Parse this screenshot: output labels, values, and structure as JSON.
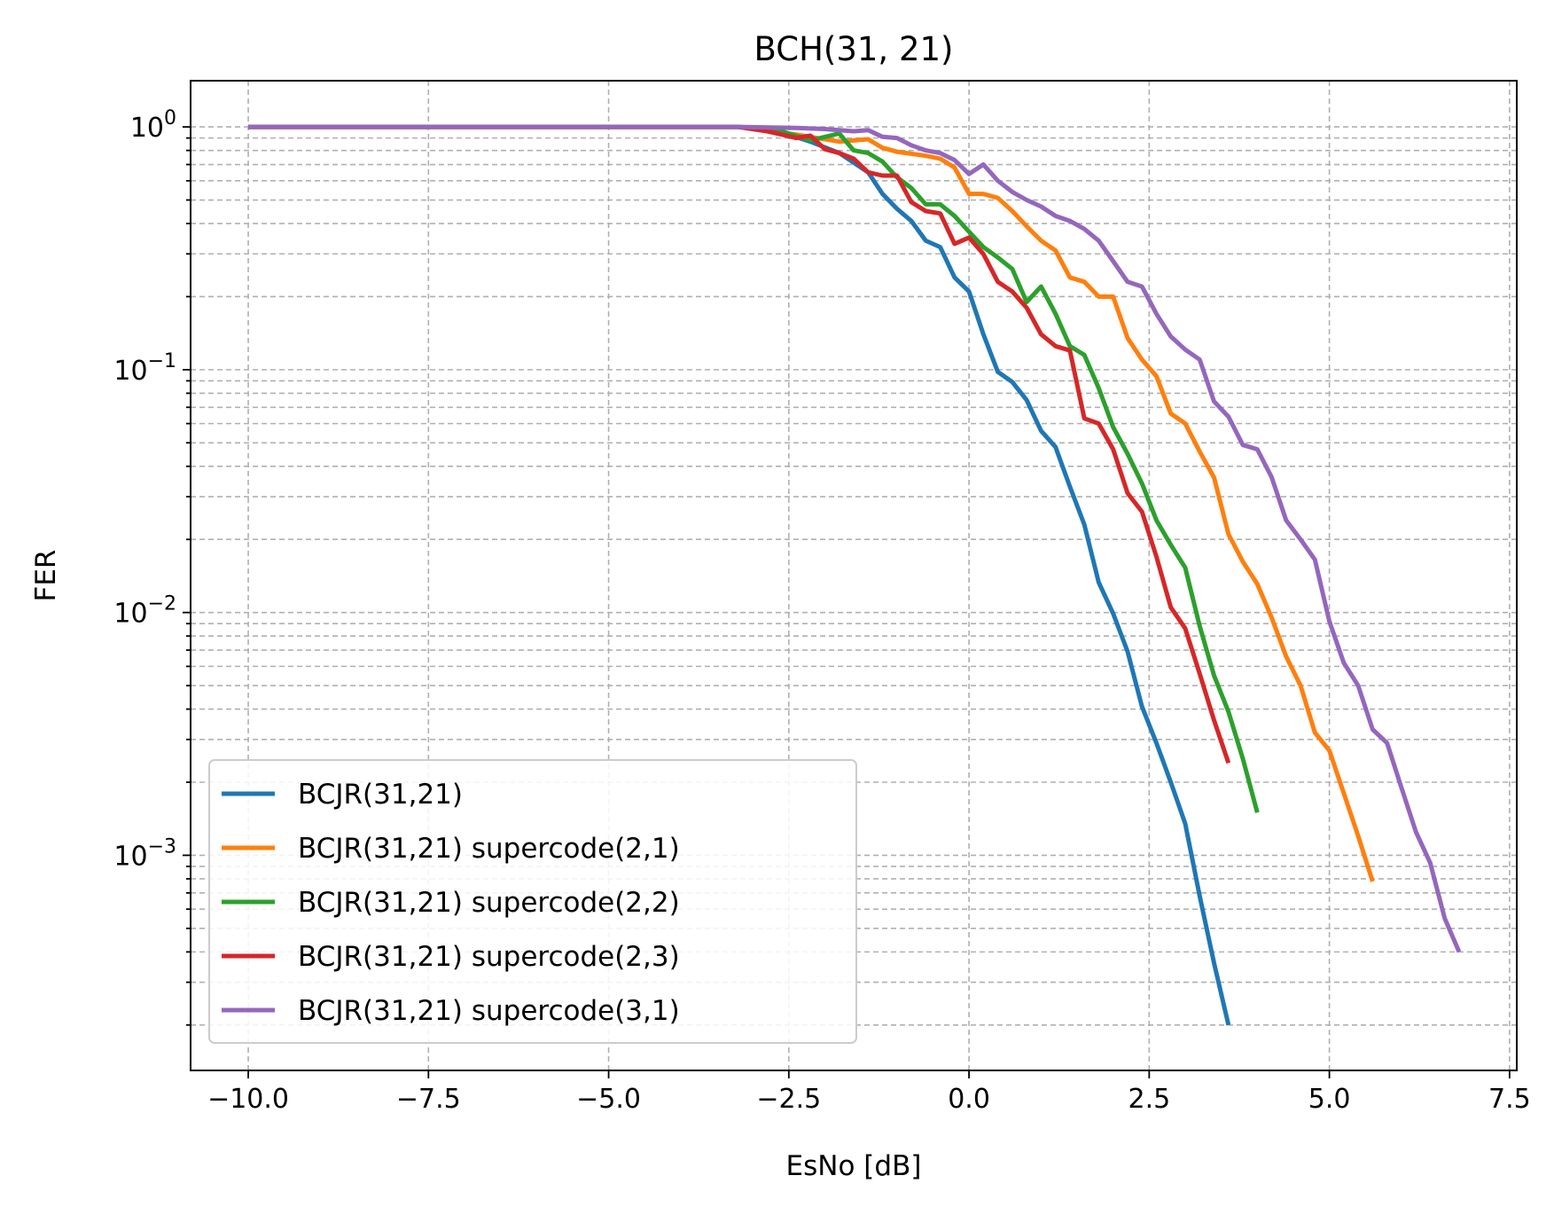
{
  "chart_data": {
    "type": "line",
    "title": "BCH(31, 21)",
    "xlabel": "EsNo [dB]",
    "ylabel": "FER",
    "xlim": [
      -10.8,
      7.6
    ],
    "ylim": [
      0.00013,
      1.55
    ],
    "yscale": "log",
    "grid": "both (major and minor), dashed",
    "legend_position": "lower-left",
    "x_ticks": [
      -10.0,
      -7.5,
      -5.0,
      -2.5,
      0.0,
      2.5,
      5.0,
      7.5
    ],
    "x_tick_labels": [
      "−10.0",
      "−7.5",
      "−5.0",
      "−2.5",
      "0.0",
      "2.5",
      "5.0",
      "7.5"
    ],
    "y_ticks": [
      0.001,
      0.01,
      0.1,
      1
    ],
    "y_tick_labels": [
      {
        "base": "10",
        "exp": "−3"
      },
      {
        "base": "10",
        "exp": "−2"
      },
      {
        "base": "10",
        "exp": "−1"
      },
      {
        "base": "10",
        "exp": "0"
      }
    ],
    "series": [
      {
        "name": "BCJR(31,21)",
        "color": "#1f77b4",
        "x": [
          -10,
          -3.2,
          -2.6,
          -2.2,
          -1.8,
          -1.4,
          -1.2,
          -1.0,
          -0.8,
          -0.6,
          -0.4,
          -0.2,
          0.0,
          0.2,
          0.4,
          0.6,
          0.8,
          1.0,
          1.2,
          1.4,
          1.6,
          1.8,
          2.0,
          2.2,
          2.4,
          2.6,
          2.8,
          3.0,
          3.2,
          3.4,
          3.6
        ],
        "y": [
          1.0,
          1.0,
          0.95,
          0.87,
          0.78,
          0.65,
          0.53,
          0.46,
          0.41,
          0.34,
          0.32,
          0.24,
          0.21,
          0.14,
          0.098,
          0.089,
          0.075,
          0.056,
          0.048,
          0.033,
          0.023,
          0.0133,
          0.0099,
          0.0069,
          0.0041,
          0.0029,
          0.002,
          0.00135,
          0.00068,
          0.00036,
          0.0002
        ]
      },
      {
        "name": "BCJR(31,21) supercode(2,1)",
        "color": "#ff7f0e",
        "x": [
          -10,
          -3.2,
          -2.4,
          -1.8,
          -1.4,
          -1.2,
          -1.0,
          -0.6,
          -0.4,
          -0.2,
          0.0,
          0.2,
          0.4,
          0.6,
          0.8,
          1.0,
          1.2,
          1.4,
          1.6,
          1.8,
          2.0,
          2.2,
          2.4,
          2.6,
          2.8,
          3.0,
          3.2,
          3.4,
          3.6,
          3.8,
          4.0,
          4.2,
          4.4,
          4.6,
          4.8,
          5.0,
          5.2,
          5.4,
          5.6
        ],
        "y": [
          1.0,
          1.0,
          0.93,
          0.87,
          0.89,
          0.82,
          0.79,
          0.76,
          0.74,
          0.68,
          0.53,
          0.53,
          0.51,
          0.45,
          0.39,
          0.34,
          0.31,
          0.24,
          0.23,
          0.2,
          0.2,
          0.135,
          0.11,
          0.094,
          0.066,
          0.06,
          0.046,
          0.036,
          0.021,
          0.0162,
          0.0131,
          0.0095,
          0.0066,
          0.005,
          0.0032,
          0.0027,
          0.0018,
          0.0012,
          0.00078
        ]
      },
      {
        "name": "BCJR(31,21) supercode(2,2)",
        "color": "#2ca02c",
        "x": [
          -10,
          -3.2,
          -2.6,
          -2.2,
          -1.8,
          -1.6,
          -1.4,
          -1.2,
          -1.0,
          -0.8,
          -0.6,
          -0.4,
          -0.2,
          0.0,
          0.2,
          0.4,
          0.6,
          0.8,
          1.0,
          1.2,
          1.4,
          1.6,
          1.8,
          2.0,
          2.2,
          2.4,
          2.6,
          2.8,
          3.0,
          3.2,
          3.4,
          3.6,
          3.8,
          4.0
        ],
        "y": [
          1.0,
          1.0,
          0.96,
          0.88,
          0.94,
          0.8,
          0.78,
          0.72,
          0.62,
          0.56,
          0.48,
          0.48,
          0.43,
          0.37,
          0.32,
          0.29,
          0.26,
          0.19,
          0.22,
          0.17,
          0.125,
          0.115,
          0.084,
          0.058,
          0.045,
          0.034,
          0.024,
          0.019,
          0.0153,
          0.0088,
          0.0055,
          0.0039,
          0.0025,
          0.0015
        ]
      },
      {
        "name": "BCJR(31,21) supercode(2,3)",
        "color": "#d62728",
        "x": [
          -10,
          -3.2,
          -2.8,
          -2.6,
          -2.4,
          -2.2,
          -2.0,
          -1.8,
          -1.6,
          -1.4,
          -1.2,
          -1.0,
          -0.8,
          -0.6,
          -0.4,
          -0.2,
          0.0,
          0.2,
          0.4,
          0.6,
          0.8,
          1.0,
          1.2,
          1.4,
          1.6,
          1.8,
          2.0,
          2.2,
          2.4,
          2.6,
          2.8,
          3.0,
          3.2,
          3.4,
          3.6
        ],
        "y": [
          1.0,
          1.0,
          0.96,
          0.93,
          0.9,
          0.92,
          0.81,
          0.78,
          0.74,
          0.65,
          0.63,
          0.63,
          0.49,
          0.45,
          0.44,
          0.33,
          0.35,
          0.3,
          0.23,
          0.21,
          0.18,
          0.14,
          0.125,
          0.12,
          0.063,
          0.06,
          0.047,
          0.031,
          0.026,
          0.017,
          0.0105,
          0.0086,
          0.0056,
          0.0036,
          0.0024
        ]
      },
      {
        "name": "BCJR(31,21) supercode(3,1)",
        "color": "#9467bd",
        "x": [
          -10,
          -3.2,
          -2.4,
          -2.0,
          -1.6,
          -1.4,
          -1.2,
          -1.0,
          -0.8,
          -0.6,
          -0.4,
          -0.2,
          0.0,
          0.2,
          0.4,
          0.6,
          0.8,
          1.0,
          1.2,
          1.4,
          1.6,
          1.8,
          2.0,
          2.2,
          2.4,
          2.6,
          2.8,
          3.0,
          3.2,
          3.4,
          3.6,
          3.8,
          4.0,
          4.2,
          4.4,
          4.6,
          4.8,
          5.0,
          5.2,
          5.4,
          5.6,
          5.8,
          6.0,
          6.2,
          6.4,
          6.6,
          6.8
        ],
        "y": [
          1.0,
          1.0,
          0.99,
          0.98,
          0.96,
          0.97,
          0.91,
          0.9,
          0.84,
          0.8,
          0.78,
          0.73,
          0.64,
          0.7,
          0.6,
          0.54,
          0.5,
          0.47,
          0.43,
          0.41,
          0.38,
          0.34,
          0.28,
          0.23,
          0.22,
          0.17,
          0.137,
          0.121,
          0.11,
          0.074,
          0.064,
          0.049,
          0.047,
          0.036,
          0.024,
          0.02,
          0.0165,
          0.0092,
          0.0062,
          0.005,
          0.0033,
          0.0029,
          0.0019,
          0.00125,
          0.00093,
          0.00055,
          0.0004
        ]
      }
    ]
  }
}
